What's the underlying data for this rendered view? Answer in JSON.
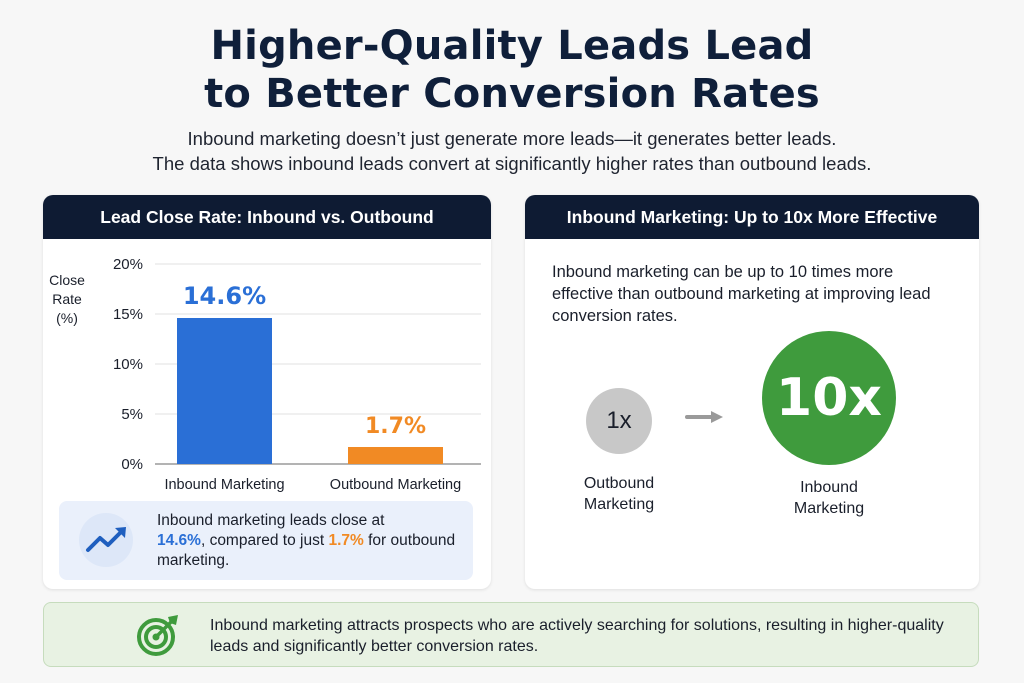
{
  "header": {
    "title_line1": "Higher-Quality Leads Lead",
    "title_line2": "to Better Conversion Rates",
    "subtitle_line1": "Inbound marketing doesn’t just generate more leads—it generates better leads.",
    "subtitle_line2": "The data shows inbound leads convert at significantly higher rates than outbound leads."
  },
  "left_card": {
    "header": "Lead Close Rate: Inbound vs. Outbound",
    "insight": {
      "icon": "trending-up-icon",
      "text_before": "Inbound marketing leads close at",
      "value_inbound": "14.6%",
      "text_middle": ", compared to just",
      "value_outbound": "1.7%",
      "text_after": "for outbound marketing."
    }
  },
  "right_card": {
    "header": "Inbound Marketing: Up to 10x More Effective",
    "text": "Inbound marketing can be up to 10 times more effective than outbound marketing at improving lead conversion rates.",
    "small_circle": "1x",
    "big_circle": "10x",
    "small_label": "Outbound Marketing",
    "big_label": "Inbound Marketing",
    "arrow_icon": "arrow-right-icon"
  },
  "banner": {
    "icon": "target-icon",
    "text": "Inbound marketing attracts prospects who are actively searching for solutions, resulting in higher-quality leads and significantly better conversion rates."
  },
  "colors": {
    "navy": "#0e1b33",
    "inbound_blue": "#2a6fd6",
    "outbound_orange": "#f18a24",
    "green": "#3f9b3d",
    "gray": "#c8c8c8"
  },
  "chart_data": {
    "type": "bar",
    "title": "Lead Close Rate: Inbound vs. Outbound",
    "ylabel": "Close Rate (%)",
    "ylabel_lines": [
      "Close",
      "Rate",
      "(%)"
    ],
    "xlabel": "",
    "categories": [
      "Inbound Marketing",
      "Outbound Marketing"
    ],
    "values": [
      14.6,
      1.7
    ],
    "value_labels": [
      "14.6%",
      "1.7%"
    ],
    "bar_colors": [
      "#2a6fd6",
      "#f18a24"
    ],
    "ylim": [
      0,
      20
    ],
    "yticks": [
      0,
      5,
      10,
      15,
      20
    ],
    "ytick_labels": [
      "0%",
      "5%",
      "10%",
      "15%",
      "20%"
    ],
    "grid": true
  }
}
